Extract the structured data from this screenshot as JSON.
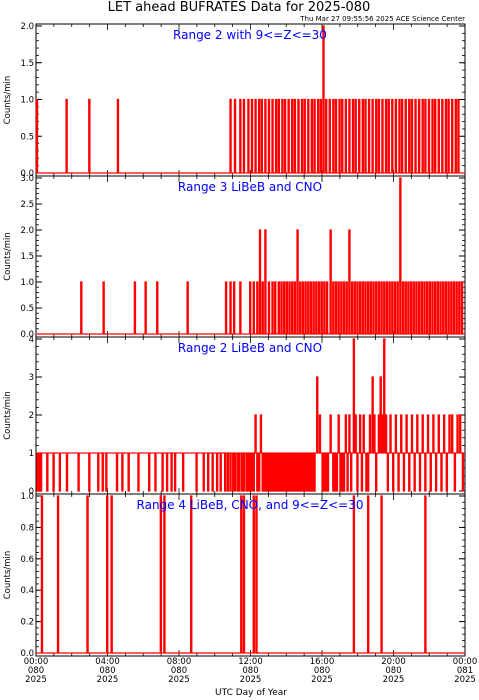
{
  "title": "LET ahead BUFRATES Data for 2025-080",
  "timestamp": "Thu Mar 27 09:55:56 2025 ACE Science Center",
  "xlabel": "UTC Day of Year",
  "x_ticks": [
    {
      "time": "00:00",
      "doy": "080",
      "year": "2025"
    },
    {
      "time": "04:00",
      "doy": "080",
      "year": "2025"
    },
    {
      "time": "08:00",
      "doy": "080",
      "year": "2025"
    },
    {
      "time": "12:00",
      "doy": "080",
      "year": "2025"
    },
    {
      "time": "16:00",
      "doy": "080",
      "year": "2025"
    },
    {
      "time": "20:00",
      "doy": "080",
      "year": "2025"
    },
    {
      "time": "00:00",
      "doy": "081",
      "year": "2025"
    }
  ],
  "colors": {
    "series": "#ff0000",
    "panel_title": "#0000ff",
    "axes": "#000000"
  },
  "chart_data": [
    {
      "type": "line",
      "title": "Range 2 with 9<=Z<=30",
      "ylabel": "Counts/min",
      "xlim": [
        0,
        24
      ],
      "ylim": [
        0,
        2
      ],
      "y_ticks": [
        "0.0",
        "0.5",
        "1.0",
        "1.5",
        "2.0"
      ],
      "y_tick_values": [
        0,
        0.5,
        1,
        1.5,
        2
      ],
      "baseline": 0,
      "events": [
        [
          0.02,
          1
        ],
        [
          1.68,
          1
        ],
        [
          2.95,
          1
        ],
        [
          4.55,
          1
        ],
        [
          10.85,
          1
        ],
        [
          11.1,
          1
        ],
        [
          11.4,
          1
        ],
        [
          11.6,
          1
        ],
        [
          11.85,
          1
        ],
        [
          12.05,
          1
        ],
        [
          12.25,
          1
        ],
        [
          12.45,
          1
        ],
        [
          12.6,
          1
        ],
        [
          12.8,
          1
        ],
        [
          13.0,
          1
        ],
        [
          13.2,
          1
        ],
        [
          13.4,
          1
        ],
        [
          13.55,
          1
        ],
        [
          13.75,
          1
        ],
        [
          13.9,
          1
        ],
        [
          14.1,
          1
        ],
        [
          14.3,
          1
        ],
        [
          14.45,
          1
        ],
        [
          14.65,
          1
        ],
        [
          14.85,
          1
        ],
        [
          15.0,
          1
        ],
        [
          15.2,
          1
        ],
        [
          15.4,
          1
        ],
        [
          15.55,
          1
        ],
        [
          15.75,
          1
        ],
        [
          15.9,
          1
        ],
        [
          16.05,
          2
        ],
        [
          16.2,
          1
        ],
        [
          16.4,
          1
        ],
        [
          16.6,
          1
        ],
        [
          16.75,
          1
        ],
        [
          16.95,
          1
        ],
        [
          17.1,
          1
        ],
        [
          17.3,
          1
        ],
        [
          17.5,
          1
        ],
        [
          17.7,
          1
        ],
        [
          17.85,
          1
        ],
        [
          18.05,
          1
        ],
        [
          18.25,
          1
        ],
        [
          18.4,
          1
        ],
        [
          18.6,
          1
        ],
        [
          18.8,
          1
        ],
        [
          19.0,
          1
        ],
        [
          19.15,
          1
        ],
        [
          19.35,
          1
        ],
        [
          19.55,
          1
        ],
        [
          19.7,
          1
        ],
        [
          19.9,
          1
        ],
        [
          20.1,
          1
        ],
        [
          20.3,
          1
        ],
        [
          20.45,
          1
        ],
        [
          20.65,
          1
        ],
        [
          20.85,
          1
        ],
        [
          21.0,
          1
        ],
        [
          21.2,
          1
        ],
        [
          21.4,
          1
        ],
        [
          21.6,
          1
        ],
        [
          21.75,
          1
        ],
        [
          21.95,
          1
        ],
        [
          22.15,
          1
        ],
        [
          22.3,
          1
        ],
        [
          22.5,
          1
        ],
        [
          22.7,
          1
        ],
        [
          22.9,
          1
        ],
        [
          23.05,
          1
        ],
        [
          23.25,
          1
        ],
        [
          23.45,
          1
        ],
        [
          23.6,
          1
        ]
      ]
    },
    {
      "type": "line",
      "title": "Range 3 LiBeB and CNO",
      "ylabel": "Counts/min",
      "xlim": [
        0,
        24
      ],
      "ylim": [
        0,
        3
      ],
      "y_ticks": [
        "0.0",
        "0.5",
        "1.0",
        "1.5",
        "2.0",
        "2.5",
        "3.0"
      ],
      "y_tick_values": [
        0,
        0.5,
        1,
        1.5,
        2,
        2.5,
        3
      ],
      "baseline": 0,
      "events": [
        [
          2.5,
          1
        ],
        [
          3.75,
          1
        ],
        [
          5.5,
          1
        ],
        [
          6.1,
          1
        ],
        [
          6.75,
          1
        ],
        [
          8.45,
          1
        ],
        [
          10.6,
          1
        ],
        [
          10.85,
          1
        ],
        [
          11.05,
          1
        ],
        [
          11.4,
          1
        ],
        [
          11.95,
          1
        ],
        [
          12.15,
          1
        ],
        [
          12.35,
          1
        ],
        [
          12.5,
          2
        ],
        [
          12.65,
          1
        ],
        [
          12.8,
          2
        ],
        [
          13.0,
          1
        ],
        [
          13.2,
          1
        ],
        [
          13.35,
          1
        ],
        [
          13.55,
          1
        ],
        [
          13.7,
          1
        ],
        [
          13.85,
          1
        ],
        [
          14.0,
          1
        ],
        [
          14.15,
          1
        ],
        [
          14.3,
          1
        ],
        [
          14.45,
          1
        ],
        [
          14.6,
          2
        ],
        [
          14.75,
          1
        ],
        [
          14.9,
          1
        ],
        [
          15.05,
          1
        ],
        [
          15.2,
          1
        ],
        [
          15.35,
          1
        ],
        [
          15.5,
          1
        ],
        [
          15.65,
          1
        ],
        [
          15.8,
          1
        ],
        [
          15.95,
          1
        ],
        [
          16.1,
          1
        ],
        [
          16.25,
          1
        ],
        [
          16.45,
          2
        ],
        [
          16.6,
          1
        ],
        [
          16.75,
          1
        ],
        [
          16.9,
          1
        ],
        [
          17.05,
          1
        ],
        [
          17.2,
          1
        ],
        [
          17.35,
          1
        ],
        [
          17.5,
          2
        ],
        [
          17.65,
          1
        ],
        [
          17.8,
          1
        ],
        [
          17.95,
          1
        ],
        [
          18.1,
          1
        ],
        [
          18.25,
          1
        ],
        [
          18.4,
          1
        ],
        [
          18.55,
          1
        ],
        [
          18.7,
          1
        ],
        [
          18.85,
          1
        ],
        [
          19.0,
          1
        ],
        [
          19.15,
          1
        ],
        [
          19.3,
          1
        ],
        [
          19.45,
          1
        ],
        [
          19.6,
          1
        ],
        [
          19.75,
          1
        ],
        [
          19.9,
          1
        ],
        [
          20.05,
          1
        ],
        [
          20.2,
          1
        ],
        [
          20.35,
          3
        ],
        [
          20.5,
          1
        ],
        [
          20.65,
          1
        ],
        [
          20.8,
          1
        ],
        [
          20.95,
          1
        ],
        [
          21.1,
          1
        ],
        [
          21.25,
          1
        ],
        [
          21.4,
          1
        ],
        [
          21.55,
          1
        ],
        [
          21.7,
          1
        ],
        [
          21.85,
          1
        ],
        [
          22.0,
          1
        ],
        [
          22.15,
          1
        ],
        [
          22.3,
          1
        ],
        [
          22.45,
          1
        ],
        [
          22.6,
          1
        ],
        [
          22.75,
          1
        ],
        [
          22.9,
          1
        ],
        [
          23.05,
          1
        ],
        [
          23.2,
          1
        ],
        [
          23.35,
          1
        ],
        [
          23.5,
          1
        ],
        [
          23.65,
          1
        ],
        [
          23.8,
          1
        ]
      ]
    },
    {
      "type": "line",
      "title": "Range 2 LiBeB and CNO",
      "ylabel": "Counts/min",
      "xlim": [
        0,
        24
      ],
      "ylim": [
        0,
        4
      ],
      "y_ticks": [
        "0",
        "1",
        "2",
        "3",
        "4"
      ],
      "y_tick_values": [
        0,
        1,
        2,
        3,
        4
      ],
      "baseline": 1,
      "events": [
        [
          0.05,
          0
        ],
        [
          0.15,
          0
        ],
        [
          0.25,
          0
        ],
        [
          0.6,
          0
        ],
        [
          0.95,
          0
        ],
        [
          1.3,
          0
        ],
        [
          1.7,
          0
        ],
        [
          2.35,
          0
        ],
        [
          2.95,
          0
        ],
        [
          3.45,
          0
        ],
        [
          3.7,
          0
        ],
        [
          3.9,
          0
        ],
        [
          4.5,
          0
        ],
        [
          4.8,
          0
        ],
        [
          5.15,
          0
        ],
        [
          5.7,
          0
        ],
        [
          6.3,
          0
        ],
        [
          6.65,
          0
        ],
        [
          7.05,
          0
        ],
        [
          7.3,
          0
        ],
        [
          7.55,
          0
        ],
        [
          7.75,
          0
        ],
        [
          8.2,
          0
        ],
        [
          8.95,
          0
        ],
        [
          9.35,
          0
        ],
        [
          9.6,
          0
        ],
        [
          9.85,
          0
        ],
        [
          10.1,
          0
        ],
        [
          10.3,
          0
        ],
        [
          10.55,
          0
        ],
        [
          10.7,
          0
        ],
        [
          10.85,
          0
        ],
        [
          11.0,
          0
        ],
        [
          11.1,
          0
        ],
        [
          11.25,
          0
        ],
        [
          11.35,
          0
        ],
        [
          11.5,
          0
        ],
        [
          11.6,
          0
        ],
        [
          11.75,
          0
        ],
        [
          11.85,
          0
        ],
        [
          11.95,
          0
        ],
        [
          12.05,
          0
        ],
        [
          12.15,
          0
        ],
        [
          12.25,
          2
        ],
        [
          12.35,
          0
        ],
        [
          12.45,
          0
        ],
        [
          12.55,
          2
        ],
        [
          12.65,
          0
        ],
        [
          12.75,
          0
        ],
        [
          12.85,
          0
        ],
        [
          12.95,
          0
        ],
        [
          13.05,
          0
        ],
        [
          13.15,
          0
        ],
        [
          13.25,
          0
        ],
        [
          13.35,
          0
        ],
        [
          13.45,
          0
        ],
        [
          13.55,
          0
        ],
        [
          13.65,
          0
        ],
        [
          13.75,
          0
        ],
        [
          13.85,
          0
        ],
        [
          13.95,
          0
        ],
        [
          14.05,
          0
        ],
        [
          14.15,
          0
        ],
        [
          14.25,
          0
        ],
        [
          14.35,
          0
        ],
        [
          14.45,
          0
        ],
        [
          14.55,
          0
        ],
        [
          14.65,
          0
        ],
        [
          14.75,
          0
        ],
        [
          14.85,
          0
        ],
        [
          14.95,
          0
        ],
        [
          15.05,
          0
        ],
        [
          15.15,
          0
        ],
        [
          15.25,
          0
        ],
        [
          15.35,
          0
        ],
        [
          15.45,
          0
        ],
        [
          15.55,
          0
        ],
        [
          15.7,
          3
        ],
        [
          15.85,
          2
        ],
        [
          16.0,
          0
        ],
        [
          16.1,
          0
        ],
        [
          16.2,
          0
        ],
        [
          16.3,
          0
        ],
        [
          16.45,
          2
        ],
        [
          16.6,
          0
        ],
        [
          16.7,
          0
        ],
        [
          16.8,
          0
        ],
        [
          16.9,
          2
        ],
        [
          17.0,
          0
        ],
        [
          17.1,
          0
        ],
        [
          17.2,
          0
        ],
        [
          17.3,
          2
        ],
        [
          17.4,
          0
        ],
        [
          17.5,
          2
        ],
        [
          17.6,
          0
        ],
        [
          17.75,
          4
        ],
        [
          17.85,
          2
        ],
        [
          17.95,
          0
        ],
        [
          18.1,
          2
        ],
        [
          18.2,
          0
        ],
        [
          18.3,
          2
        ],
        [
          18.45,
          0
        ],
        [
          18.55,
          0
        ],
        [
          18.65,
          2
        ],
        [
          18.8,
          3
        ],
        [
          18.9,
          2
        ],
        [
          19.0,
          0
        ],
        [
          19.15,
          2
        ],
        [
          19.25,
          3
        ],
        [
          19.35,
          2
        ],
        [
          19.45,
          4
        ],
        [
          19.55,
          2
        ],
        [
          19.65,
          0
        ],
        [
          19.8,
          2
        ],
        [
          19.95,
          0
        ],
        [
          20.1,
          2
        ],
        [
          20.25,
          0
        ],
        [
          20.4,
          2
        ],
        [
          20.55,
          0
        ],
        [
          20.7,
          2
        ],
        [
          20.85,
          0
        ],
        [
          21.0,
          2
        ],
        [
          21.15,
          0
        ],
        [
          21.3,
          2
        ],
        [
          21.45,
          0
        ],
        [
          21.6,
          2
        ],
        [
          21.75,
          0
        ],
        [
          21.9,
          2
        ],
        [
          22.05,
          0
        ],
        [
          22.2,
          2
        ],
        [
          22.35,
          0
        ],
        [
          22.5,
          2
        ],
        [
          22.65,
          0
        ],
        [
          22.8,
          2
        ],
        [
          22.95,
          0
        ],
        [
          23.1,
          2
        ],
        [
          23.25,
          2
        ],
        [
          23.4,
          0
        ],
        [
          23.55,
          2
        ],
        [
          23.7,
          2
        ],
        [
          23.85,
          0
        ]
      ]
    },
    {
      "type": "line",
      "title": "Range 4 LiBeB, CNO, and 9<=Z<=30",
      "ylabel": "Counts/min",
      "xlim": [
        0,
        24
      ],
      "ylim": [
        0,
        1
      ],
      "y_ticks": [
        "0.0",
        "0.2",
        "0.4",
        "0.6",
        "0.8",
        "1.0"
      ],
      "y_tick_values": [
        0,
        0.2,
        0.4,
        0.6,
        0.8,
        1.0
      ],
      "baseline": 0,
      "events": [
        [
          0.3,
          1
        ],
        [
          1.2,
          1
        ],
        [
          2.85,
          1
        ],
        [
          3.95,
          1
        ],
        [
          4.2,
          1
        ],
        [
          6.95,
          1
        ],
        [
          7.15,
          1
        ],
        [
          8.65,
          1
        ],
        [
          11.45,
          1
        ],
        [
          11.6,
          1
        ],
        [
          12.15,
          1
        ],
        [
          12.3,
          1
        ],
        [
          17.75,
          1
        ],
        [
          18.55,
          1
        ],
        [
          19.3,
          1
        ],
        [
          21.75,
          1
        ]
      ]
    }
  ]
}
